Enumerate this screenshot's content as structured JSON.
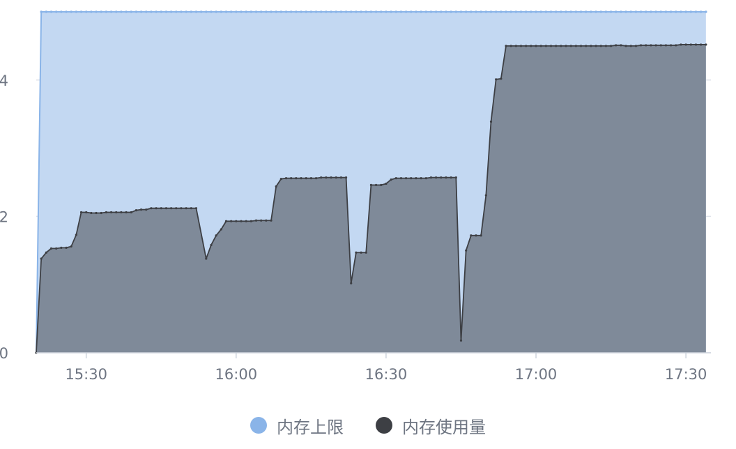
{
  "chart_data": {
    "type": "area",
    "title": "",
    "xlabel": "",
    "ylabel": "",
    "x_ticks": [
      "15:30",
      "16:00",
      "16:30",
      "17:00",
      "17:30"
    ],
    "y_ticks": [
      0,
      2,
      4
    ],
    "ylim": [
      0,
      5
    ],
    "xlim": [
      "15:20",
      "17:35"
    ],
    "grid": true,
    "legend_position": "bottom",
    "series": [
      {
        "name": "内存上限",
        "color": "#8ab4e8",
        "fill": "#c3d8f2",
        "points": [
          [
            "15:20",
            0
          ],
          [
            "15:21",
            5.0
          ],
          [
            "17:34",
            5.0
          ]
        ]
      },
      {
        "name": "内存使用量",
        "color": "#3d3f44",
        "fill": "#7f8a99",
        "points": [
          [
            "15:20",
            0.0
          ],
          [
            "15:21",
            1.38
          ],
          [
            "15:22",
            1.47
          ],
          [
            "15:23",
            1.53
          ],
          [
            "15:24",
            1.53
          ],
          [
            "15:25",
            1.54
          ],
          [
            "15:26",
            1.54
          ],
          [
            "15:27",
            1.56
          ],
          [
            "15:28",
            1.73
          ],
          [
            "15:29",
            2.06
          ],
          [
            "15:30",
            2.06
          ],
          [
            "15:31",
            2.05
          ],
          [
            "15:32",
            2.05
          ],
          [
            "15:33",
            2.05
          ],
          [
            "15:34",
            2.06
          ],
          [
            "15:35",
            2.06
          ],
          [
            "15:36",
            2.06
          ],
          [
            "15:37",
            2.06
          ],
          [
            "15:38",
            2.06
          ],
          [
            "15:39",
            2.06
          ],
          [
            "15:40",
            2.09
          ],
          [
            "15:41",
            2.1
          ],
          [
            "15:42",
            2.1
          ],
          [
            "15:43",
            2.12
          ],
          [
            "15:44",
            2.12
          ],
          [
            "15:45",
            2.12
          ],
          [
            "15:46",
            2.12
          ],
          [
            "15:47",
            2.12
          ],
          [
            "15:48",
            2.12
          ],
          [
            "15:49",
            2.12
          ],
          [
            "15:50",
            2.12
          ],
          [
            "15:51",
            2.12
          ],
          [
            "15:52",
            2.12
          ],
          [
            "15:54",
            1.38
          ],
          [
            "15:55",
            1.58
          ],
          [
            "15:56",
            1.72
          ],
          [
            "15:57",
            1.81
          ],
          [
            "15:58",
            1.93
          ],
          [
            "15:59",
            1.93
          ],
          [
            "16:00",
            1.93
          ],
          [
            "16:01",
            1.93
          ],
          [
            "16:02",
            1.93
          ],
          [
            "16:03",
            1.93
          ],
          [
            "16:04",
            1.94
          ],
          [
            "16:05",
            1.94
          ],
          [
            "16:06",
            1.94
          ],
          [
            "16:07",
            1.94
          ],
          [
            "16:08",
            2.44
          ],
          [
            "16:09",
            2.55
          ],
          [
            "16:10",
            2.56
          ],
          [
            "16:11",
            2.56
          ],
          [
            "16:12",
            2.56
          ],
          [
            "16:13",
            2.56
          ],
          [
            "16:14",
            2.56
          ],
          [
            "16:15",
            2.56
          ],
          [
            "16:16",
            2.56
          ],
          [
            "16:17",
            2.57
          ],
          [
            "16:18",
            2.57
          ],
          [
            "16:19",
            2.57
          ],
          [
            "16:20",
            2.57
          ],
          [
            "16:21",
            2.57
          ],
          [
            "16:22",
            2.57
          ],
          [
            "16:23",
            1.02
          ],
          [
            "16:24",
            1.47
          ],
          [
            "16:25",
            1.47
          ],
          [
            "16:26",
            1.47
          ],
          [
            "16:27",
            2.46
          ],
          [
            "16:28",
            2.46
          ],
          [
            "16:29",
            2.46
          ],
          [
            "16:30",
            2.48
          ],
          [
            "16:31",
            2.54
          ],
          [
            "16:32",
            2.56
          ],
          [
            "16:33",
            2.56
          ],
          [
            "16:34",
            2.56
          ],
          [
            "16:35",
            2.56
          ],
          [
            "16:36",
            2.56
          ],
          [
            "16:37",
            2.56
          ],
          [
            "16:38",
            2.56
          ],
          [
            "16:39",
            2.57
          ],
          [
            "16:40",
            2.57
          ],
          [
            "16:41",
            2.57
          ],
          [
            "16:42",
            2.57
          ],
          [
            "16:43",
            2.57
          ],
          [
            "16:44",
            2.57
          ],
          [
            "16:45",
            0.18
          ],
          [
            "16:46",
            1.5
          ],
          [
            "16:47",
            1.72
          ],
          [
            "16:48",
            1.72
          ],
          [
            "16:49",
            1.72
          ],
          [
            "16:50",
            2.31
          ],
          [
            "16:51",
            3.39
          ],
          [
            "16:52",
            4.01
          ],
          [
            "16:53",
            4.02
          ],
          [
            "16:54",
            4.5
          ],
          [
            "16:55",
            4.5
          ],
          [
            "16:56",
            4.5
          ],
          [
            "16:57",
            4.5
          ],
          [
            "16:58",
            4.5
          ],
          [
            "16:59",
            4.5
          ],
          [
            "17:00",
            4.5
          ],
          [
            "17:01",
            4.5
          ],
          [
            "17:02",
            4.5
          ],
          [
            "17:03",
            4.5
          ],
          [
            "17:04",
            4.5
          ],
          [
            "17:05",
            4.5
          ],
          [
            "17:06",
            4.5
          ],
          [
            "17:07",
            4.5
          ],
          [
            "17:08",
            4.5
          ],
          [
            "17:09",
            4.5
          ],
          [
            "17:10",
            4.5
          ],
          [
            "17:11",
            4.5
          ],
          [
            "17:12",
            4.5
          ],
          [
            "17:13",
            4.5
          ],
          [
            "17:14",
            4.5
          ],
          [
            "17:15",
            4.5
          ],
          [
            "17:16",
            4.51
          ],
          [
            "17:17",
            4.51
          ],
          [
            "17:18",
            4.5
          ],
          [
            "17:19",
            4.5
          ],
          [
            "17:20",
            4.5
          ],
          [
            "17:21",
            4.51
          ],
          [
            "17:22",
            4.51
          ],
          [
            "17:23",
            4.51
          ],
          [
            "17:24",
            4.51
          ],
          [
            "17:25",
            4.51
          ],
          [
            "17:26",
            4.51
          ],
          [
            "17:27",
            4.51
          ],
          [
            "17:28",
            4.51
          ],
          [
            "17:29",
            4.52
          ],
          [
            "17:30",
            4.52
          ],
          [
            "17:31",
            4.52
          ],
          [
            "17:32",
            4.52
          ],
          [
            "17:33",
            4.52
          ],
          [
            "17:34",
            4.52
          ]
        ]
      }
    ]
  }
}
